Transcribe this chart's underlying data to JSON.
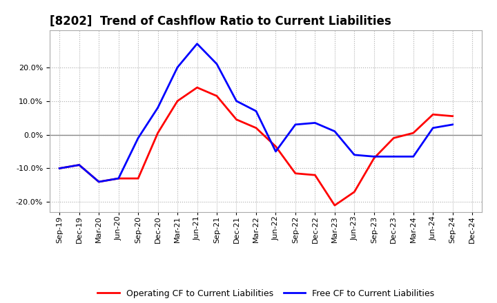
{
  "title": "[8202]  Trend of Cashflow Ratio to Current Liabilities",
  "x_labels": [
    "Sep-19",
    "Dec-19",
    "Mar-20",
    "Jun-20",
    "Sep-20",
    "Dec-20",
    "Mar-21",
    "Jun-21",
    "Sep-21",
    "Dec-21",
    "Mar-22",
    "Jun-22",
    "Sep-22",
    "Dec-22",
    "Mar-23",
    "Jun-23",
    "Sep-23",
    "Dec-23",
    "Mar-24",
    "Jun-24",
    "Sep-24",
    "Dec-24"
  ],
  "operating_cf": [
    -10.0,
    -9.0,
    -14.0,
    -13.0,
    -13.0,
    0.5,
    10.0,
    14.0,
    11.5,
    4.5,
    2.0,
    -3.5,
    -11.5,
    -12.0,
    -21.0,
    -17.0,
    -7.0,
    -1.0,
    0.5,
    6.0,
    5.5,
    null
  ],
  "free_cf": [
    -10.0,
    -9.0,
    -14.0,
    -13.0,
    -1.0,
    8.0,
    20.0,
    27.0,
    21.0,
    10.0,
    7.0,
    -5.0,
    3.0,
    3.5,
    1.0,
    -6.0,
    -6.5,
    -6.5,
    -6.5,
    2.0,
    3.0,
    null
  ],
  "operating_color": "#FF0000",
  "free_color": "#0000FF",
  "ylim_min": -23,
  "ylim_max": 31,
  "yticks": [
    -20,
    -10,
    0,
    10,
    20
  ],
  "grid_color": "#AAAAAA",
  "zero_line_color": "#888888",
  "bg_color": "#FFFFFF",
  "legend_labels": [
    "Operating CF to Current Liabilities",
    "Free CF to Current Liabilities"
  ],
  "title_fontsize": 12,
  "tick_fontsize": 8,
  "legend_fontsize": 9,
  "linewidth": 2.0
}
